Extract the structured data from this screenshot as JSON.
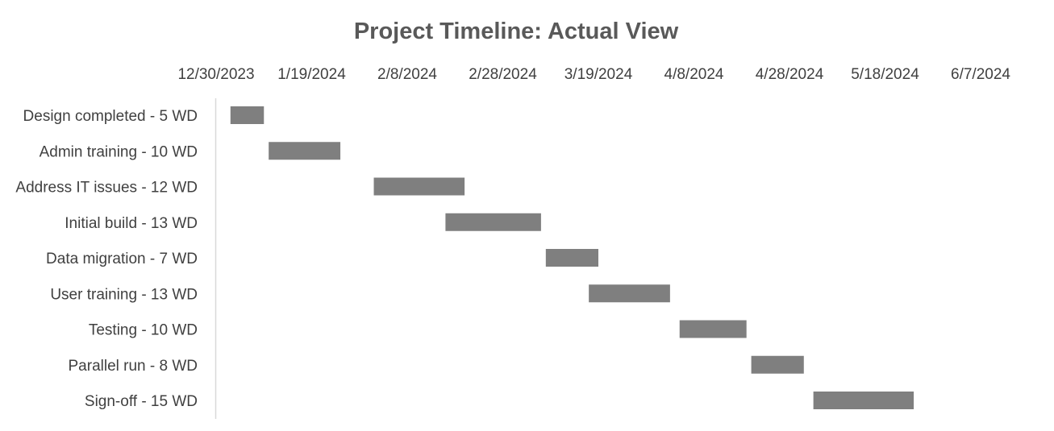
{
  "chart_data": {
    "type": "bar",
    "subtype": "gantt",
    "title": "Project Timeline: Actual View",
    "xlabel": "",
    "ylabel": "",
    "x_axis_position": "top",
    "xlim": [
      "2023-12-30",
      "2024-06-17"
    ],
    "x_ticks": [
      "12/30/2023",
      "1/19/2024",
      "2/8/2024",
      "2/28/2024",
      "3/19/2024",
      "4/8/2024",
      "4/28/2024",
      "5/18/2024",
      "6/7/2024"
    ],
    "x_tick_dates": [
      "2023-12-30",
      "2024-01-19",
      "2024-02-08",
      "2024-02-28",
      "2024-03-19",
      "2024-04-08",
      "2024-04-28",
      "2024-05-18",
      "2024-06-07"
    ],
    "grid": false,
    "legend": "none",
    "bar_color": "#7f7f7f",
    "tasks": [
      {
        "label": "Design completed - 5 WD",
        "start": "2024-01-02",
        "end": "2024-01-09"
      },
      {
        "label": "Admin training - 10 WD",
        "start": "2024-01-10",
        "end": "2024-01-25"
      },
      {
        "label": "Address IT issues - 12 WD",
        "start": "2024-02-01",
        "end": "2024-02-20"
      },
      {
        "label": "Initial build - 13 WD",
        "start": "2024-02-16",
        "end": "2024-03-07"
      },
      {
        "label": "Data migration - 7 WD",
        "start": "2024-03-08",
        "end": "2024-03-19"
      },
      {
        "label": "User training - 13 WD",
        "start": "2024-03-17",
        "end": "2024-04-03"
      },
      {
        "label": "Testing - 10 WD",
        "start": "2024-04-05",
        "end": "2024-04-19"
      },
      {
        "label": "Parallel run - 8 WD",
        "start": "2024-04-20",
        "end": "2024-05-01"
      },
      {
        "label": "Sign-off - 15 WD",
        "start": "2024-05-03",
        "end": "2024-05-24"
      }
    ]
  }
}
